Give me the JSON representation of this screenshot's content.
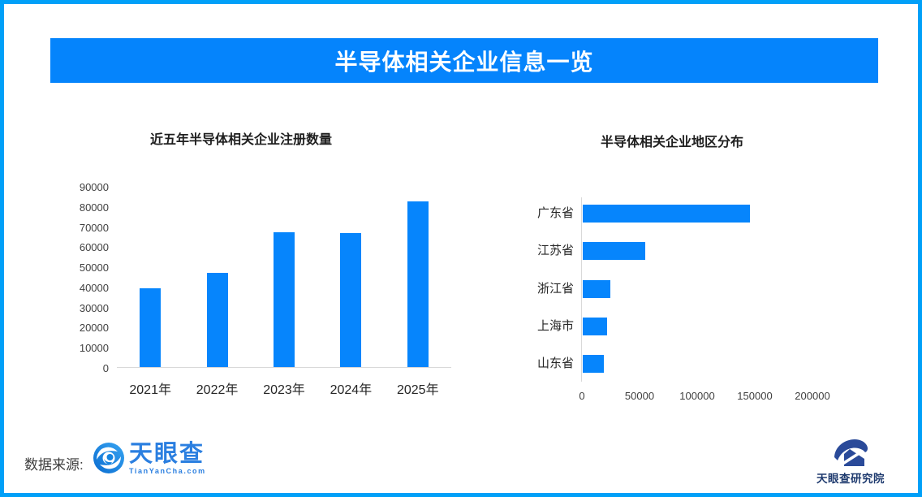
{
  "page": {
    "border_color": "#00A0F8",
    "background_color": "#FFFFFF"
  },
  "header": {
    "title": "半导体相关企业信息一览",
    "bg_color": "#0584FC",
    "text_color": "#FFFFFF"
  },
  "chart_data": [
    {
      "type": "bar",
      "orientation": "vertical",
      "title": "近五年半导体相关企业注册数量",
      "categories": [
        "2021年",
        "2022年",
        "2023年",
        "2024年",
        "2025年"
      ],
      "values": [
        39000,
        47000,
        67000,
        66500,
        82500
      ],
      "ylim": [
        0,
        90000
      ],
      "yticks": [
        0,
        10000,
        20000,
        30000,
        40000,
        50000,
        60000,
        70000,
        80000,
        90000
      ],
      "bar_color": "#0685FC",
      "grid": false,
      "legend": "none"
    },
    {
      "type": "bar",
      "orientation": "horizontal",
      "title": "半导体相关企业地区分布",
      "categories": [
        "广东省",
        "江苏省",
        "浙江省",
        "上海市",
        "山东省"
      ],
      "values": [
        145000,
        54000,
        24000,
        21000,
        18000
      ],
      "xlim": [
        0,
        200000
      ],
      "xticks": [
        0,
        50000,
        100000,
        150000,
        200000
      ],
      "bar_color": "#0685FC",
      "grid": false,
      "legend": "none"
    }
  ],
  "footer": {
    "source_label": "数据来源:",
    "tianyancha": {
      "icon": "tianyancha-eye-icon",
      "text": "天眼查",
      "subtext": "TianYanCha.com",
      "color": "#2B7FE0"
    },
    "research": {
      "icon": "tianyancha-research-icon",
      "text": "天眼查研究院",
      "color": "#1E3A6E"
    }
  }
}
